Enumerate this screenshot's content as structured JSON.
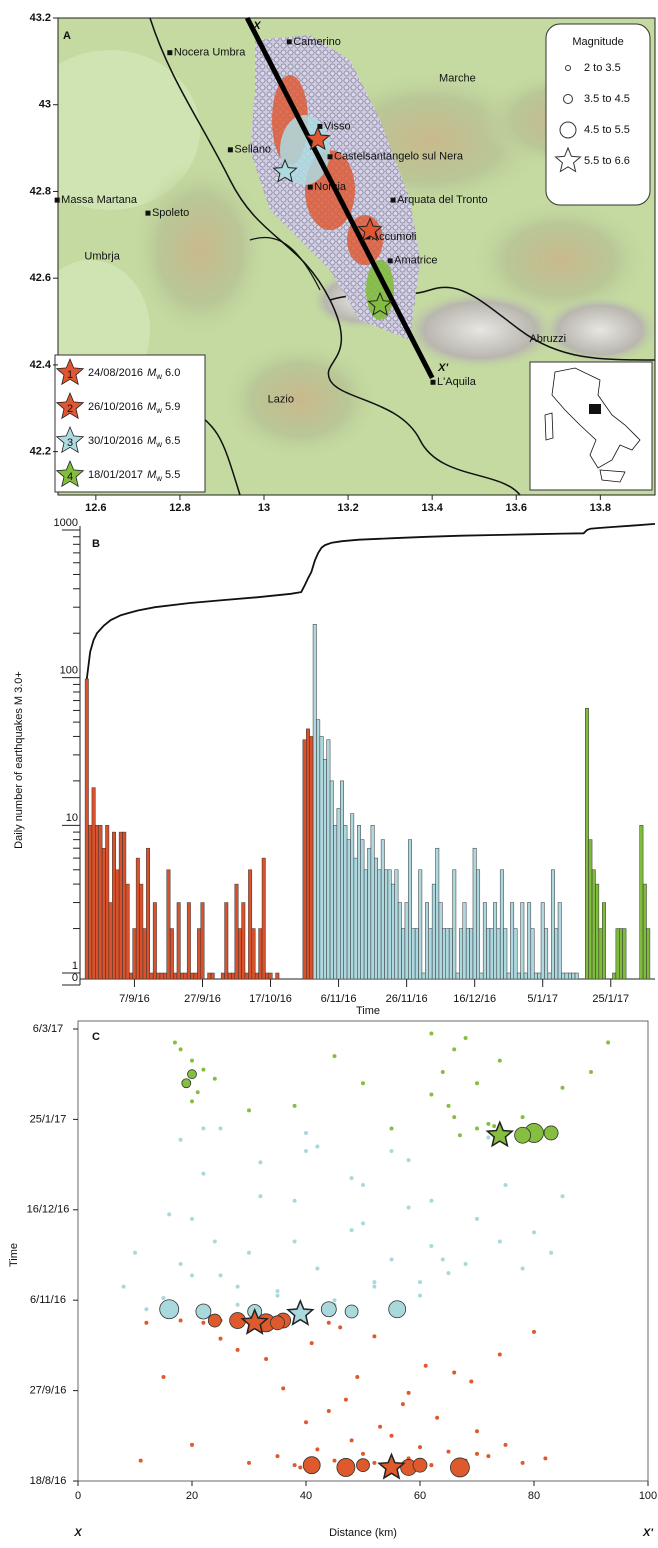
{
  "chart_data": [
    {
      "type": "map",
      "panel": "A",
      "xlim": [
        12.51,
        13.93
      ],
      "ylim": [
        42.1,
        43.2
      ],
      "xticks": [
        12.6,
        12.8,
        13,
        13.2,
        13.4,
        13.6,
        13.8
      ],
      "yticks": [
        42.2,
        42.4,
        42.6,
        42.8,
        43,
        43.2
      ],
      "regions": [
        {
          "name": "Marche",
          "lon": 13.46,
          "lat": 43.06
        },
        {
          "name": "Umbrja",
          "lon": 12.615,
          "lat": 42.65
        },
        {
          "name": "Lazio",
          "lon": 13.04,
          "lat": 42.32
        },
        {
          "name": "Abruzzi",
          "lon": 13.675,
          "lat": 42.46
        }
      ],
      "towns": [
        {
          "name": "Camerino",
          "lon": 13.06,
          "lat": 43.145
        },
        {
          "name": "Nocera Umbra",
          "lon": 12.776,
          "lat": 43.12
        },
        {
          "name": "Visso",
          "lon": 13.133,
          "lat": 42.95
        },
        {
          "name": "Sellano",
          "lon": 12.92,
          "lat": 42.896
        },
        {
          "name": "Castelsantangelo sul Nera",
          "lon": 13.157,
          "lat": 42.88
        },
        {
          "name": "Norcia",
          "lon": 13.11,
          "lat": 42.81
        },
        {
          "name": "Arquata del Tronto",
          "lon": 13.307,
          "lat": 42.78
        },
        {
          "name": "Massa Martana",
          "lon": 12.508,
          "lat": 42.78
        },
        {
          "name": "Spoleto",
          "lon": 12.724,
          "lat": 42.75
        },
        {
          "name": "Accumoli",
          "lon": 13.247,
          "lat": 42.695
        },
        {
          "name": "Amatrice",
          "lon": 13.3,
          "lat": 42.64
        },
        {
          "name": "L'Aquila",
          "lon": 13.402,
          "lat": 42.36
        }
      ],
      "section": {
        "labels": [
          "X",
          "X'"
        ],
        "lon": [
          12.96,
          13.4
        ],
        "lat": [
          43.2,
          42.37
        ]
      },
      "magnitude_legend": {
        "title": "Magnitude",
        "classes": [
          "2 to 3.5",
          "3.5 to 4.5",
          "4.5 to 5.5",
          "5.5 to 6.6"
        ]
      },
      "events": [
        {
          "number": "1",
          "date": "24/08/2016",
          "magnitude_symbol": "M",
          "magnitude_subscript": "w",
          "magnitude": "6.0",
          "color": "#df5630",
          "lon": 13.252,
          "lat": 42.71
        },
        {
          "number": "2",
          "date": "26/10/2016",
          "magnitude_symbol": "M",
          "magnitude_subscript": "w",
          "magnitude": "5.9",
          "color": "#df5630",
          "lon": 13.128,
          "lat": 42.92
        },
        {
          "number": "3",
          "date": "30/10/2016",
          "magnitude_symbol": "M",
          "magnitude_subscript": "w",
          "magnitude": "6.5",
          "color": "#aedbe0",
          "lon": 13.05,
          "lat": 42.845
        },
        {
          "number": "4",
          "date": "18/01/2017",
          "magnitude_symbol": "M",
          "magnitude_subscript": "w",
          "magnitude": "5.5",
          "color": "#82bd3e",
          "lon": 13.276,
          "lat": 42.538
        }
      ]
    },
    {
      "type": "bar",
      "panel": "B",
      "log": true,
      "ylabel": "Daily number of earthquakes M 3.0+",
      "xlabel": "Time",
      "xlim": [
        -2,
        167
      ],
      "ylim": [
        0,
        1000
      ],
      "yticks": [
        0,
        1,
        10,
        100,
        1000
      ],
      "xticks": [
        {
          "value": 14,
          "label": "7/9/16"
        },
        {
          "value": 34,
          "label": "27/9/16"
        },
        {
          "value": 54,
          "label": "17/10/16"
        },
        {
          "value": 74,
          "label": "6/11/16"
        },
        {
          "value": 94,
          "label": "26/11/16"
        },
        {
          "value": 114,
          "label": "16/12/16"
        },
        {
          "value": 134,
          "label": "5/1/17"
        },
        {
          "value": 154,
          "label": "25/1/17"
        }
      ],
      "series": [
        {
          "color": "#d9522c",
          "x": [
            0,
            1,
            2,
            3,
            4,
            5,
            6,
            7,
            8,
            9,
            10,
            11,
            12,
            13,
            14,
            15,
            16,
            17,
            18,
            19,
            20,
            21,
            22,
            23,
            24,
            25,
            26,
            27,
            28,
            29,
            30,
            31,
            32,
            33,
            34,
            35,
            36,
            37,
            38,
            39,
            40,
            41,
            42,
            43,
            44,
            45,
            46,
            47,
            48,
            49,
            50,
            51,
            52,
            53,
            54,
            55,
            56,
            57,
            58,
            59,
            60,
            61,
            62,
            63,
            64,
            65,
            66
          ],
          "values": [
            98,
            10,
            18,
            10,
            10,
            7,
            10,
            3,
            9,
            5,
            9,
            9,
            4,
            1,
            2,
            6,
            4,
            2,
            7,
            1,
            3,
            1,
            1,
            1,
            5,
            2,
            1,
            3,
            1,
            1,
            3,
            1,
            1,
            2,
            3,
            0,
            1,
            1,
            0,
            0,
            1,
            3,
            1,
            1,
            4,
            2,
            3,
            1,
            5,
            2,
            1,
            2,
            6,
            1,
            1,
            0,
            1,
            0,
            0,
            0,
            0,
            0,
            0,
            0,
            38,
            45,
            40
          ]
        },
        {
          "color": "#aed8df",
          "x": [
            67,
            68,
            69,
            70,
            71,
            72,
            73,
            74,
            75,
            76,
            77,
            78,
            79,
            80,
            81,
            82,
            83,
            84,
            85,
            86,
            87,
            88,
            89,
            90,
            91,
            92,
            93,
            94,
            95,
            96,
            97,
            98,
            99,
            100,
            101,
            102,
            103,
            104,
            105,
            106,
            107,
            108,
            109,
            110,
            111,
            112,
            113,
            114,
            115,
            116,
            117,
            118,
            119,
            120,
            121,
            122,
            123,
            124,
            125,
            126,
            127,
            128,
            129,
            130,
            131,
            132,
            133,
            134,
            135,
            136,
            137,
            138,
            139,
            140,
            141,
            142,
            143,
            144
          ],
          "values": [
            230,
            52,
            40,
            28,
            38,
            20,
            10,
            13,
            20,
            10,
            8,
            12,
            6,
            10,
            8,
            5,
            7,
            10,
            6,
            5,
            8,
            5,
            5,
            4,
            5,
            3,
            2,
            3,
            8,
            2,
            2,
            5,
            1,
            3,
            2,
            4,
            7,
            3,
            2,
            2,
            2,
            5,
            1,
            2,
            3,
            2,
            2,
            7,
            5,
            1,
            3,
            2,
            2,
            3,
            2,
            5,
            2,
            1,
            3,
            2,
            1,
            3,
            1,
            3,
            2,
            1,
            1,
            3,
            2,
            1,
            5,
            2,
            3,
            1,
            1,
            1,
            1,
            1
          ]
        },
        {
          "color": "#7fbb3c",
          "x": [
            147,
            148,
            149,
            150,
            151,
            152,
            153,
            154,
            155,
            156,
            157,
            158,
            159,
            160,
            161,
            162,
            163,
            164,
            165
          ],
          "values": [
            62,
            8,
            5,
            4,
            2,
            3,
            0,
            0,
            1,
            2,
            2,
            2,
            0,
            0,
            0,
            0,
            10,
            4,
            2
          ]
        }
      ],
      "cumulative": {
        "color": "#111111",
        "x": [
          0,
          1,
          2,
          3,
          5,
          7,
          10,
          15,
          20,
          30,
          40,
          50,
          60,
          63,
          64,
          65,
          66,
          67,
          68,
          69,
          70,
          72,
          75,
          80,
          90,
          100,
          110,
          120,
          130,
          140,
          146,
          147,
          148,
          150,
          155,
          160,
          167
        ],
        "values": [
          98,
          150,
          180,
          200,
          225,
          245,
          265,
          285,
          300,
          320,
          335,
          350,
          370,
          380,
          420,
          470,
          520,
          620,
          700,
          760,
          790,
          820,
          840,
          860,
          880,
          900,
          915,
          925,
          935,
          945,
          950,
          1000,
          1020,
          1030,
          1050,
          1070,
          1100
        ]
      }
    },
    {
      "type": "scatter",
      "panel": "C",
      "xlabel": "Distance (km)",
      "ylabel": "Time",
      "end_labels": [
        "X",
        "X'"
      ],
      "xlim": [
        0,
        100
      ],
      "ylim": [
        -6,
        194
      ],
      "xticks": [
        0,
        20,
        40,
        60,
        80,
        100
      ],
      "yticks": [
        {
          "value": -6,
          "label": "18/8/16"
        },
        {
          "value": 34,
          "label": "27/9/16"
        },
        {
          "value": 74,
          "label": "6/11/16"
        },
        {
          "value": 114,
          "label": "16/12/16"
        },
        {
          "value": 154,
          "label": "25/1/17"
        },
        {
          "value": 194,
          "label": "6/3/17"
        }
      ],
      "series": [
        {
          "marker": "dot",
          "color": "#de5a2d",
          "x": [
            30,
            35,
            38,
            42,
            45,
            48,
            50,
            52,
            55,
            58,
            60,
            62,
            65,
            68,
            70,
            72,
            75,
            78,
            82,
            40,
            44,
            47,
            53,
            57,
            63,
            36,
            49,
            61,
            69,
            74,
            28,
            41,
            52,
            66,
            80,
            33,
            46,
            58,
            11,
            20,
            12,
            18,
            22,
            25,
            28,
            32,
            35,
            44,
            15,
            25,
            46,
            55,
            62,
            70,
            39,
            50
          ],
          "y": [
            2,
            5,
            1,
            8,
            3,
            12,
            6,
            2,
            14,
            4,
            9,
            1,
            7,
            3,
            16,
            5,
            10,
            2,
            4,
            20,
            25,
            30,
            18,
            28,
            22,
            35,
            40,
            45,
            38,
            50,
            52,
            55,
            58,
            42,
            60,
            48,
            62,
            33,
            3,
            10,
            64,
            65,
            64,
            65,
            64,
            65,
            64,
            64,
            40,
            57,
            2,
            3,
            1,
            6,
            0,
            1
          ]
        },
        {
          "marker": "dot",
          "color": "#a9d8dd",
          "x": [
            8,
            12,
            15,
            18,
            20,
            22,
            25,
            28,
            30,
            32,
            35,
            38,
            40,
            42,
            45,
            48,
            50,
            52,
            55,
            58,
            60,
            62,
            65,
            18,
            25,
            32,
            40,
            48,
            55,
            62,
            70,
            75,
            80,
            83,
            20,
            28,
            35,
            45,
            52,
            60,
            68,
            74,
            16,
            24,
            38,
            50,
            64,
            78,
            22,
            42,
            58,
            72,
            10,
            85
          ],
          "y": [
            80,
            70,
            75,
            90,
            110,
            130,
            85,
            72,
            95,
            120,
            78,
            100,
            140,
            88,
            74,
            105,
            125,
            82,
            92,
            115,
            76,
            98,
            86,
            145,
            150,
            135,
            148,
            128,
            140,
            118,
            110,
            125,
            104,
            95,
            85,
            80,
            76,
            72,
            80,
            82,
            90,
            100,
            112,
            100,
            118,
            108,
            92,
            88,
            150,
            142,
            136,
            146,
            95,
            120
          ]
        },
        {
          "marker": "dot",
          "color": "#86bf3f",
          "x": [
            18,
            20,
            22,
            19,
            21,
            17,
            24,
            38,
            45,
            55,
            62,
            64,
            66,
            68,
            70,
            72,
            75,
            78,
            80,
            82,
            65,
            70,
            74,
            62,
            66,
            85,
            93,
            30,
            50,
            90,
            20,
            67,
            73
          ],
          "y": [
            185,
            180,
            176,
            170,
            166,
            188,
            172,
            160,
            182,
            150,
            165,
            175,
            185,
            190,
            150,
            152,
            148,
            155,
            150,
            149,
            160,
            170,
            180,
            192,
            155,
            168,
            188,
            158,
            170,
            175,
            162,
            147,
            151
          ]
        },
        {
          "marker": "circle",
          "color": "#de5a2d",
          "x": [
            41,
            47,
            50,
            58,
            60,
            67,
            24,
            28,
            33,
            36,
            35
          ],
          "y": [
            1,
            0,
            1,
            0,
            1,
            0,
            65,
            65,
            64,
            65,
            64
          ],
          "sizes": [
            4.6,
            4.7,
            4.2,
            4.5,
            4.3,
            4.8,
            4.2,
            4.5,
            4.7,
            4.4,
            4.3
          ]
        },
        {
          "marker": "circle",
          "color": "#a9d8dd",
          "x": [
            16,
            22,
            44,
            56,
            31,
            48
          ],
          "y": [
            70,
            69,
            70,
            70,
            69,
            69
          ],
          "sizes": [
            4.8,
            4.4,
            4.4,
            4.6,
            4.3,
            4.2
          ]
        },
        {
          "marker": "circle",
          "color": "#86bf3f",
          "x": [
            80,
            83,
            78,
            20,
            19
          ],
          "y": [
            148,
            148,
            147,
            174,
            170
          ],
          "sizes": [
            4.8,
            4.3,
            4.5,
            3.8,
            3.8
          ]
        },
        {
          "marker": "star",
          "color": "#de5a2d",
          "x": [
            55,
            31
          ],
          "y": [
            0,
            64
          ]
        },
        {
          "marker": "star",
          "color": "#a9d8dd",
          "x": [
            39
          ],
          "y": [
            68
          ]
        },
        {
          "marker": "star",
          "color": "#86bf3f",
          "x": [
            74
          ],
          "y": [
            147
          ]
        }
      ]
    }
  ]
}
